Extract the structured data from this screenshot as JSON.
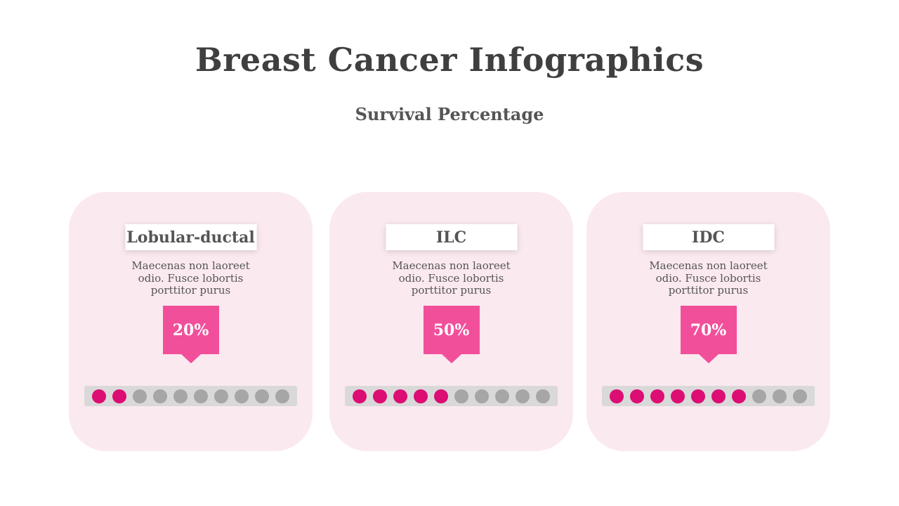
{
  "title": "Breast Cancer Infographics",
  "subtitle": "Survival Percentage",
  "colors": {
    "card_bg": "#fbe9f0",
    "badge": "#f24f9b",
    "dot_active": "#dc0d73",
    "dot_inactive": "#a6a6a6",
    "bar_bg": "#d9d9d9"
  },
  "cards": [
    {
      "label": "Lobular-ductal",
      "description": "Maecenas non laoreet odio. Fusce lobortis porttitor purus",
      "percent_label": "20%",
      "filled_dots": 2,
      "total_dots": 10
    },
    {
      "label": "ILC",
      "description": "Maecenas non laoreet odio. Fusce lobortis porttitor purus",
      "percent_label": "50%",
      "filled_dots": 5,
      "total_dots": 10
    },
    {
      "label": "IDC",
      "description": "Maecenas non laoreet odio. Fusce lobortis porttitor purus",
      "percent_label": "70%",
      "filled_dots": 7,
      "total_dots": 10
    }
  ]
}
